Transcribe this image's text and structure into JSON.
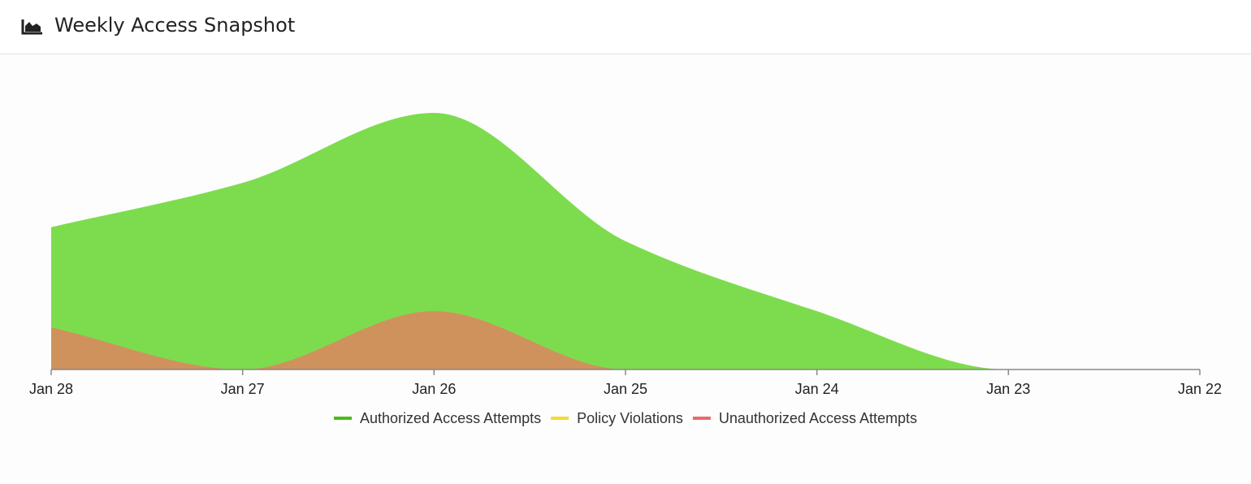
{
  "header": {
    "title": "Weekly Access Snapshot",
    "icon": "area-chart-icon"
  },
  "chart_data": {
    "type": "area",
    "title": "Weekly Access Snapshot",
    "xlabel": "",
    "ylabel": "",
    "categories": [
      "Jan 28",
      "Jan 27",
      "Jan 26",
      "Jan 25",
      "Jan 24",
      "Jan 23",
      "Jan 22"
    ],
    "ylim": [
      0,
      110
    ],
    "grid": false,
    "legend_position": "bottom",
    "series": [
      {
        "name": "Authorized Access Attempts",
        "color": "#7ddc4e",
        "legend_color": "#4cbb17",
        "values": [
          61,
          80,
          110,
          55,
          25,
          0,
          0
        ]
      },
      {
        "name": "Policy Violations",
        "color": "#f5d83a",
        "legend_color": "#f5d83a",
        "values": [
          0,
          0,
          0,
          0,
          0,
          0,
          0
        ]
      },
      {
        "name": "Unauthorized Access Attempts",
        "color": "#d98a5f",
        "legend_color": "#e86a6a",
        "values": [
          18,
          0,
          25,
          0,
          0,
          0,
          0
        ]
      }
    ]
  }
}
